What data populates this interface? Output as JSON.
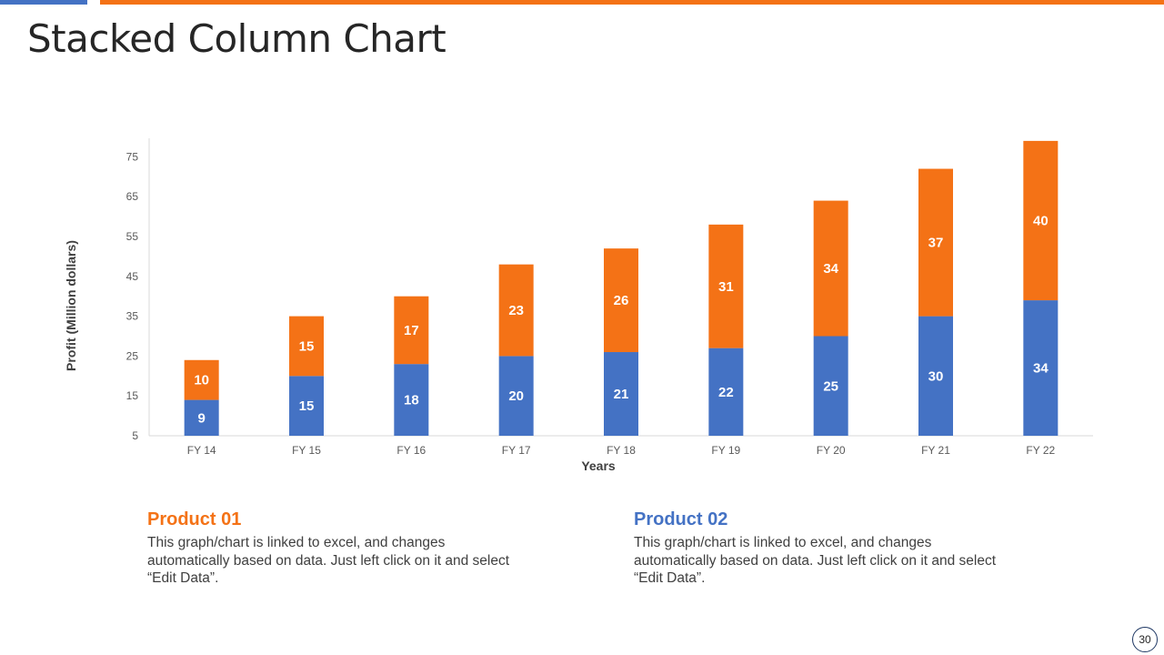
{
  "slide": {
    "title": "Stacked Column Chart",
    "page_number": "30"
  },
  "colors": {
    "accent_blue": "#4472c4",
    "accent_orange": "#f47216",
    "product01": "#f47216",
    "product02": "#4472c4"
  },
  "products": [
    {
      "name": "Product 01",
      "description": "This graph/chart is linked to excel, and changes automatically based on data. Just left click on it and select “Edit Data”."
    },
    {
      "name": "Product 02",
      "description": "This graph/chart is linked to excel, and changes automatically based on data. Just left click on it and select “Edit Data”."
    }
  ],
  "chart_data": {
    "type": "bar",
    "stacked": true,
    "title": "",
    "xlabel": "Years",
    "ylabel": "Profit  (Million dollars)",
    "ylim": [
      5,
      80
    ],
    "yticks": [
      5,
      15,
      25,
      35,
      45,
      55,
      65,
      75
    ],
    "categories": [
      "FY 14",
      "FY 15",
      "FY 16",
      "FY 17",
      "FY 18",
      "FY 19",
      "FY 20",
      "FY 21",
      "FY 22"
    ],
    "series": [
      {
        "name": "Product 02",
        "color": "#4472c4",
        "values": [
          9,
          15,
          18,
          20,
          21,
          22,
          25,
          30,
          34
        ]
      },
      {
        "name": "Product 01",
        "color": "#f47216",
        "values": [
          10,
          15,
          17,
          23,
          26,
          31,
          34,
          37,
          40
        ]
      }
    ]
  }
}
